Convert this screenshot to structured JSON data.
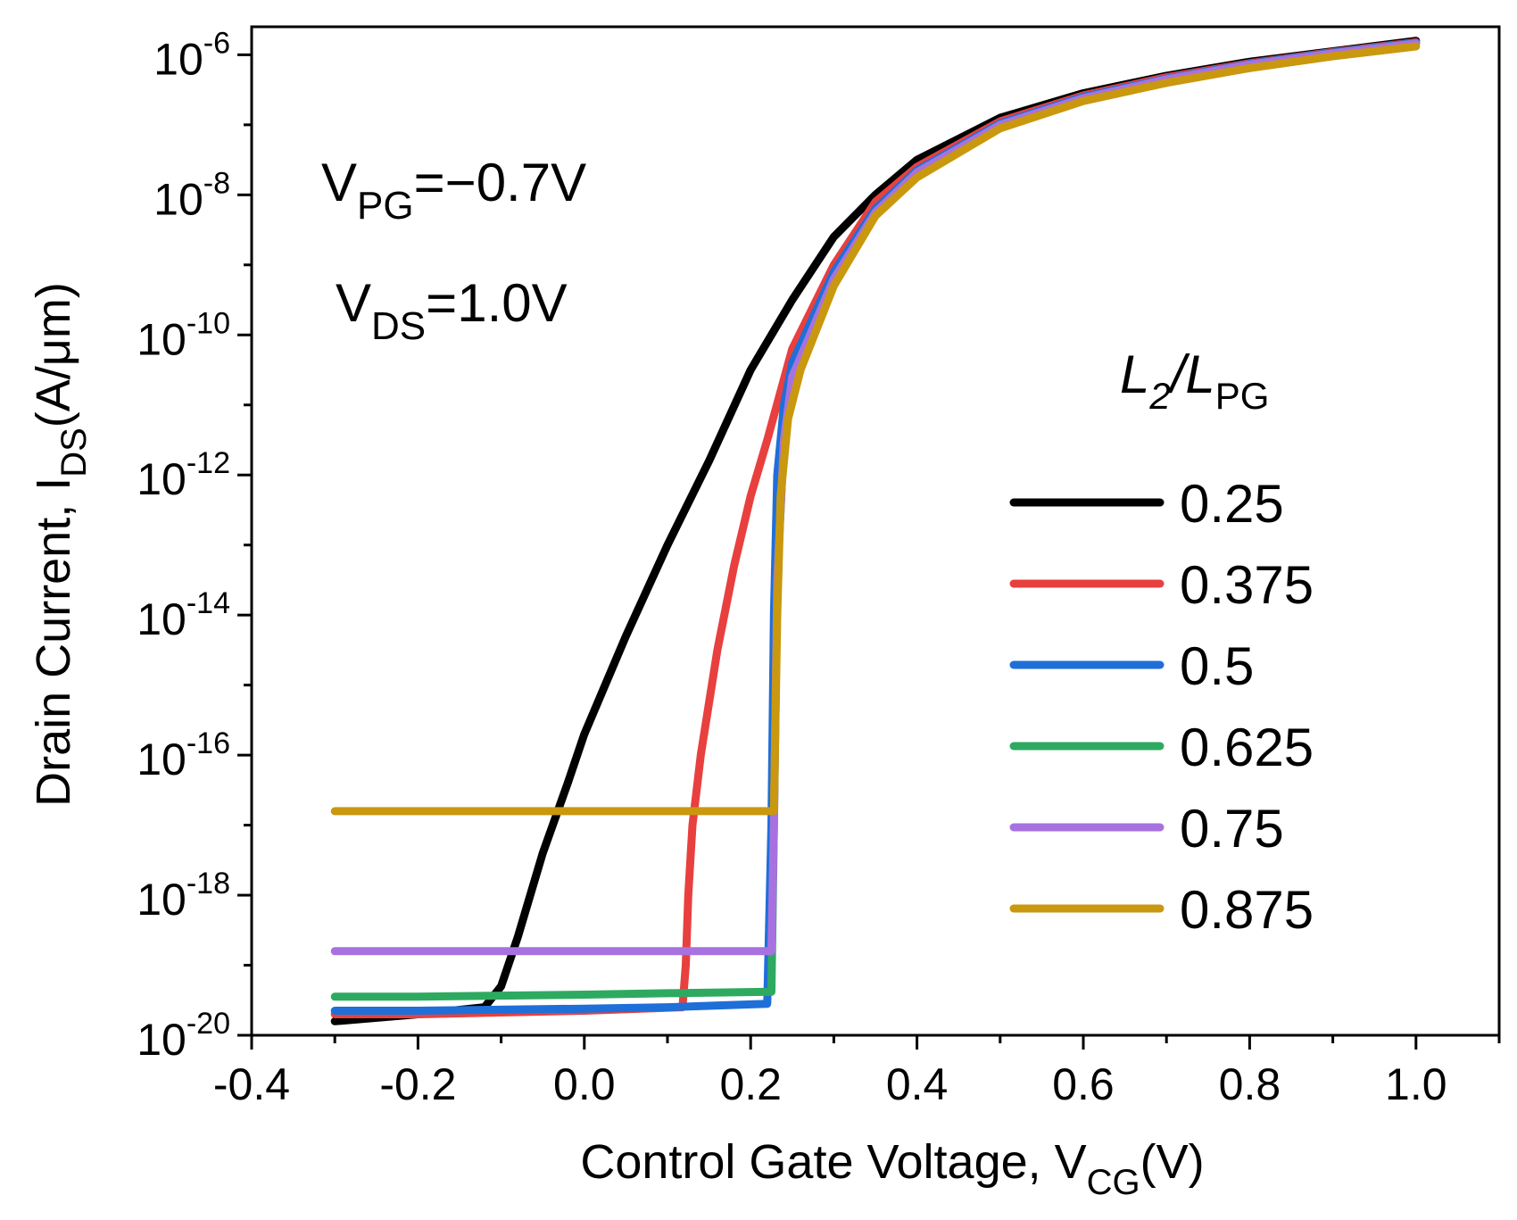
{
  "chart_data": {
    "type": "line",
    "yscale": "log",
    "xlabel": {
      "main": "Control Gate Voltage, V",
      "sub": "CG",
      "suffix": "(V)"
    },
    "ylabel": {
      "main": "Drain Current, I",
      "sub": "DS",
      "suffix": "(A/μm)"
    },
    "xlim": [
      -0.4,
      1.1
    ],
    "ylim_exp": [
      -20,
      -5.6
    ],
    "xticks": [
      -0.4,
      -0.2,
      0.0,
      0.2,
      0.4,
      0.6,
      0.8,
      1.0
    ],
    "xtick_labels": [
      "-0.4",
      "-0.2",
      "0.0",
      "0.2",
      "0.4",
      "0.6",
      "0.8",
      "1.0"
    ],
    "yticks_exp": [
      -20,
      -18,
      -16,
      -14,
      -12,
      -10,
      -8,
      -6
    ],
    "ytick_labels": [
      {
        "base": "10",
        "exp": "-20"
      },
      {
        "base": "10",
        "exp": "-18"
      },
      {
        "base": "10",
        "exp": "-16"
      },
      {
        "base": "10",
        "exp": "-14"
      },
      {
        "base": "10",
        "exp": "-12"
      },
      {
        "base": "10",
        "exp": "-10"
      },
      {
        "base": "10",
        "exp": "-8"
      },
      {
        "base": "10",
        "exp": "-6"
      }
    ],
    "annotations": [
      {
        "main": "V",
        "sub": "PG",
        "suffix": "=−0.7V"
      },
      {
        "main": "V",
        "sub": "DS",
        "suffix": "=1.0V"
      }
    ],
    "legend": {
      "title": {
        "main": "L",
        "sub1": "2",
        "mid": "/L",
        "sub2": "PG"
      },
      "position": "right"
    },
    "series": [
      {
        "name": "0.25",
        "color": "#000000",
        "x": [
          -0.3,
          -0.2,
          -0.12,
          -0.1,
          -0.08,
          -0.05,
          -0.02,
          0.0,
          0.05,
          0.1,
          0.15,
          0.2,
          0.25,
          0.3,
          0.35,
          0.4,
          0.5,
          0.6,
          0.7,
          0.8,
          0.9,
          1.0
        ],
        "logy": [
          -19.8,
          -19.7,
          -19.6,
          -19.3,
          -18.6,
          -17.4,
          -16.4,
          -15.7,
          -14.3,
          -13.0,
          -11.8,
          -10.5,
          -9.5,
          -8.6,
          -8.0,
          -7.5,
          -6.9,
          -6.55,
          -6.3,
          -6.1,
          -5.95,
          -5.8
        ]
      },
      {
        "name": "0.375",
        "color": "#e8403e",
        "x": [
          -0.3,
          -0.2,
          0.0,
          0.118,
          0.122,
          0.125,
          0.13,
          0.14,
          0.16,
          0.18,
          0.2,
          0.22,
          0.25,
          0.3,
          0.35,
          0.4,
          0.5,
          0.6,
          0.7,
          0.8,
          0.9,
          1.0
        ],
        "logy": [
          -19.7,
          -19.7,
          -19.65,
          -19.6,
          -19.0,
          -18.0,
          -17.0,
          -16.0,
          -14.5,
          -13.3,
          -12.3,
          -11.5,
          -10.2,
          -9.0,
          -8.1,
          -7.6,
          -6.95,
          -6.58,
          -6.32,
          -6.12,
          -5.96,
          -5.82
        ]
      },
      {
        "name": "0.5",
        "color": "#1f6fd8",
        "x": [
          -0.3,
          -0.2,
          0.0,
          0.1,
          0.22,
          0.225,
          0.228,
          0.232,
          0.24,
          0.25,
          0.3,
          0.35,
          0.4,
          0.5,
          0.6,
          0.7,
          0.8,
          0.9,
          1.0
        ],
        "logy": [
          -19.65,
          -19.65,
          -19.62,
          -19.6,
          -19.55,
          -17.0,
          -14.0,
          -12.0,
          -11.0,
          -10.4,
          -9.1,
          -8.2,
          -7.65,
          -6.98,
          -6.6,
          -6.34,
          -6.13,
          -5.97,
          -5.83
        ]
      },
      {
        "name": "0.625",
        "color": "#2eaa60",
        "x": [
          -0.3,
          -0.2,
          0.0,
          0.1,
          0.225,
          0.228,
          0.232,
          0.24,
          0.25,
          0.3,
          0.35,
          0.4,
          0.5,
          0.6,
          0.7,
          0.8,
          0.9,
          1.0
        ],
        "logy": [
          -19.45,
          -19.45,
          -19.42,
          -19.4,
          -19.38,
          -17.0,
          -13.5,
          -11.5,
          -10.6,
          -9.2,
          -8.25,
          -7.68,
          -7.0,
          -6.62,
          -6.35,
          -6.14,
          -5.98,
          -5.84
        ]
      },
      {
        "name": "0.75",
        "color": "#a772e0",
        "x": [
          -0.3,
          -0.2,
          0.0,
          0.1,
          0.225,
          0.228,
          0.232,
          0.24,
          0.25,
          0.3,
          0.35,
          0.4,
          0.5,
          0.6,
          0.7,
          0.8,
          0.9,
          1.0
        ],
        "logy": [
          -18.8,
          -18.8,
          -18.8,
          -18.8,
          -18.8,
          -17.0,
          -13.5,
          -11.5,
          -10.6,
          -9.2,
          -8.25,
          -7.68,
          -7.0,
          -6.62,
          -6.35,
          -6.14,
          -5.98,
          -5.84
        ]
      },
      {
        "name": "0.875",
        "color": "#c9980f",
        "x": [
          -0.3,
          -0.2,
          0.0,
          0.1,
          0.228,
          0.232,
          0.236,
          0.245,
          0.26,
          0.3,
          0.35,
          0.4,
          0.5,
          0.6,
          0.7,
          0.8,
          0.9,
          1.0
        ],
        "logy": [
          -16.8,
          -16.8,
          -16.8,
          -16.8,
          -16.8,
          -14.0,
          -12.3,
          -11.2,
          -10.5,
          -9.3,
          -8.3,
          -7.75,
          -7.05,
          -6.66,
          -6.4,
          -6.19,
          -6.02,
          -5.88
        ]
      }
    ]
  }
}
